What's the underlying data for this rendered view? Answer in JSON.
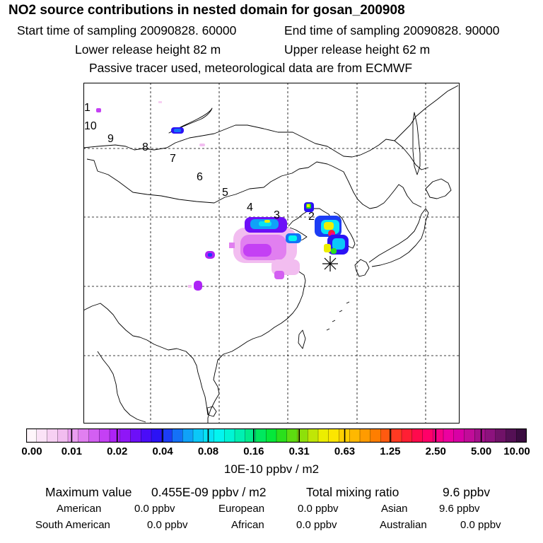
{
  "header": {
    "title": "NO2 source contributions in nested domain for gosan_200908",
    "start_time": "Start time of sampling 20090828. 60000",
    "end_time": "End time of sampling 20090828. 90000",
    "lower_release": "Lower release height   82 m",
    "upper_release": "Upper release height   62 m",
    "tracer_note": "Passive tracer used, meteorological data are from ECMWF"
  },
  "map": {
    "trajectory_labels": [
      "1",
      "10",
      "9",
      "8",
      "7",
      "6",
      "5",
      "4",
      "3",
      "2"
    ],
    "receptor_marker": "asterisk-station-marker",
    "coastline_color": "#000000",
    "gridline_color": "#000000"
  },
  "colorbar": {
    "tick_labels": [
      "0.00",
      "0.01",
      "0.02",
      "0.04",
      "0.08",
      "0.16",
      "0.31",
      "0.63",
      "1.25",
      "2.50",
      "5.00",
      "10.00"
    ],
    "colors": [
      "#fff6fb",
      "#fbe3f7",
      "#f7d0f3",
      "#f2bdf0",
      "#ea9ef0",
      "#e17ff0",
      "#d35ff2",
      "#c440f4",
      "#ad23f6",
      "#8f16f7",
      "#6d0ff8",
      "#4a0cf8",
      "#2b12f5",
      "#1c3df5",
      "#1471f7",
      "#10a2f8",
      "#0bc8f8",
      "#06e3f5",
      "#03f5f0",
      "#00f5d5",
      "#00f0b2",
      "#00ec8c",
      "#00e85e",
      "#05e83a",
      "#2be01c",
      "#5ddc10",
      "#8ee00a",
      "#c0e606",
      "#ecee00",
      "#fce600",
      "#ffd000",
      "#ffb800",
      "#ff9b00",
      "#ff7e00",
      "#ff5a10",
      "#ff3a22",
      "#ff1f34",
      "#ff0a4d",
      "#ff0068",
      "#f70085",
      "#ec00a0",
      "#d800a5",
      "#c10c99",
      "#a6108c",
      "#8c127d",
      "#701268",
      "#541055",
      "#3a0c40"
    ],
    "unit_label": "10E-10 ppbv / m2"
  },
  "stats": {
    "max_label": "Maximum value",
    "max_value": "0.455E-09 ppbv / m2",
    "total_label": "Total mixing ratio",
    "total_value": "9.6 ppbv",
    "regions": [
      {
        "name": "American",
        "value": "0.0 ppbv"
      },
      {
        "name": "European",
        "value": "0.0 ppbv"
      },
      {
        "name": "Asian",
        "value": "9.6 ppbv"
      },
      {
        "name": "South American",
        "value": "0.0 ppbv"
      },
      {
        "name": "African",
        "value": "0.0 ppbv"
      },
      {
        "name": "Australian",
        "value": "0.0 ppbv"
      }
    ]
  }
}
